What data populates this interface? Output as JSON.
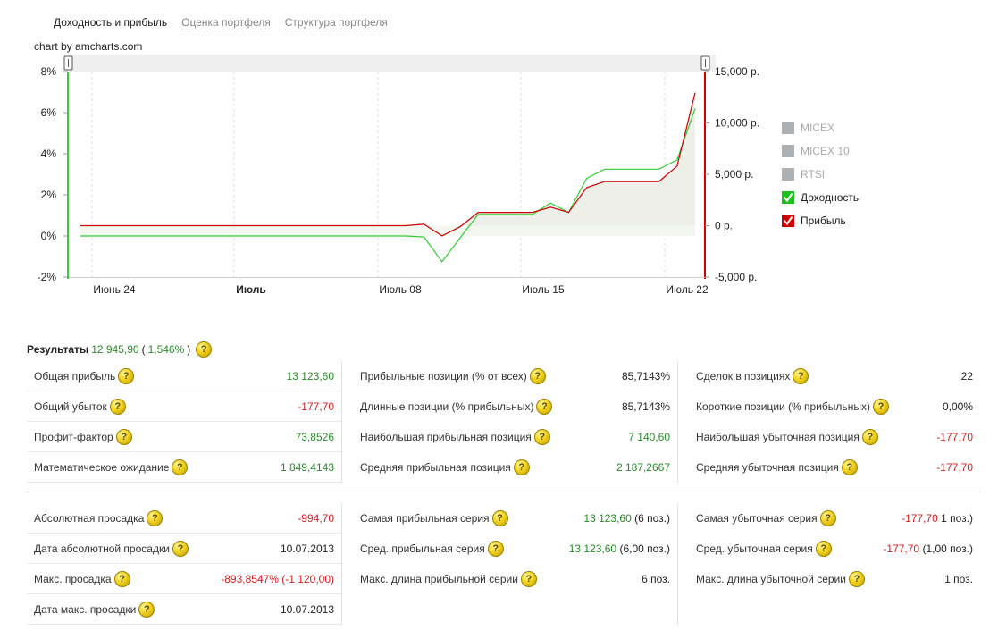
{
  "tabs": [
    {
      "label": "Доходность и прибыль",
      "active": true
    },
    {
      "label": "Оценка портфеля",
      "active": false
    },
    {
      "label": "Структура портфеля",
      "active": false
    }
  ],
  "chart": {
    "credit": "chart by amcharts.com"
  },
  "chart_data": {
    "type": "line",
    "x_ticks": [
      "Июнь 24",
      "Июль",
      "Июль 08",
      "Июль 15",
      "Июль 22"
    ],
    "left_axis": {
      "ticks": [
        "8%",
        "6%",
        "4%",
        "2%",
        "0%",
        "-2%"
      ],
      "ylim": [
        -2,
        8
      ]
    },
    "right_axis": {
      "ticks": [
        "15,000 р.",
        "10,000 р.",
        "5,000 р.",
        "0 р.",
        "-5,000 р."
      ],
      "ylim": [
        -5000,
        15000
      ]
    },
    "x": [
      "2013-06-20",
      "2013-06-21",
      "2013-06-24",
      "2013-06-25",
      "2013-06-26",
      "2013-06-27",
      "2013-06-28",
      "2013-07-01",
      "2013-07-02",
      "2013-07-03",
      "2013-07-04",
      "2013-07-05",
      "2013-07-08",
      "2013-07-09",
      "2013-07-10",
      "2013-07-11",
      "2013-07-12",
      "2013-07-15",
      "2013-07-16",
      "2013-07-17",
      "2013-07-18",
      "2013-07-19",
      "2013-07-22",
      "2013-07-23",
      "2013-07-24"
    ],
    "series": [
      {
        "name": "Доходность",
        "axis": "left",
        "color": "#33cc33",
        "values": [
          0,
          0,
          0,
          0,
          0,
          0,
          0,
          0,
          0,
          0,
          0,
          0,
          0,
          -0.05,
          -1.25,
          -0.1,
          1.05,
          1.05,
          1.6,
          1.15,
          2.8,
          3.25,
          3.25,
          3.7,
          6.2
        ]
      },
      {
        "name": "Прибыль",
        "axis": "right",
        "color": "#cc0000",
        "values": [
          0,
          0,
          0,
          0,
          0,
          0,
          0,
          0,
          0,
          0,
          0,
          0,
          0,
          150,
          -994.7,
          -100,
          1300,
          1300,
          1800,
          1300,
          3700,
          4300,
          4300,
          5800,
          12945.9
        ]
      }
    ],
    "legend": [
      {
        "label": "MICEX",
        "enabled": false,
        "color": "#aeb1b3"
      },
      {
        "label": "MICEX 10",
        "enabled": false,
        "color": "#aeb1b3"
      },
      {
        "label": "RTSI",
        "enabled": false,
        "color": "#aeb1b3"
      },
      {
        "label": "Доходность",
        "enabled": true,
        "color": "#1fbf1f"
      },
      {
        "label": "Прибыль",
        "enabled": true,
        "color": "#cc0000"
      }
    ],
    "legend_position": "right",
    "grid": true
  },
  "results": {
    "label": "Результаты",
    "total": "12 945,90",
    "open": "(",
    "percent": "1,546%",
    "close": ")"
  },
  "top_rows": [
    [
      {
        "label": "Общая прибыль",
        "value": "13 123,60",
        "color": "green"
      },
      {
        "label": "Общий убыток",
        "value": "-177,70",
        "color": "red"
      },
      {
        "label": "Профит-фактор",
        "value": "73,8526",
        "color": "green"
      },
      {
        "label": "Математическое ожидание",
        "value": "1 849,4143",
        "color": "green"
      }
    ],
    [
      {
        "label": "Прибыльные позиции (% от всех)",
        "value": "85,7143%",
        "color": "dark"
      },
      {
        "label": "Длинные позиции (% прибыльных)",
        "value": "85,7143%",
        "color": "dark"
      },
      {
        "label": "Наибольшая прибыльная позиция",
        "value": "7 140,60",
        "color": "green"
      },
      {
        "label": "Средняя прибыльная позиция",
        "value": "2 187,2667",
        "color": "green"
      }
    ],
    [
      {
        "label": "Сделок в позициях",
        "value": "22",
        "color": "dark"
      },
      {
        "label": "Короткие позиции (% прибыльных)",
        "value": "0,00%",
        "color": "dark"
      },
      {
        "label": "Наибольшая убыточная позиция",
        "value": "-177,70",
        "color": "red"
      },
      {
        "label": "Средняя убыточная позиция",
        "value": "-177,70",
        "color": "red"
      }
    ]
  ],
  "bottom_rows": [
    [
      {
        "label": "Абсолютная просадка",
        "value": "-994,70",
        "color": "red",
        "extra": ""
      },
      {
        "label": "Дата абсолютной просадки",
        "value": "10.07.2013",
        "color": "dark",
        "extra": ""
      },
      {
        "label": "Макс. просадка",
        "value": "-893,8547% (-1 120,00)",
        "color": "red",
        "extra": ""
      },
      {
        "label": "Дата макс. просадки",
        "value": "10.07.2013",
        "color": "dark",
        "extra": ""
      }
    ],
    [
      {
        "label": "Самая прибыльная серия",
        "value": "13 123,60",
        "color": "green",
        "extra": "(6 поз.)"
      },
      {
        "label": "Сред. прибыльная серия",
        "value": "13 123,60",
        "color": "green",
        "extra": "(6,00 поз.)"
      },
      {
        "label": "Макс. длина прибыльной серии",
        "value": "6 поз.",
        "color": "dark",
        "extra": ""
      }
    ],
    [
      {
        "label": "Самая убыточная серия",
        "value": "-177,70",
        "color": "red",
        "extra": "1 поз.)"
      },
      {
        "label": "Сред. убыточная серия",
        "value": "-177,70",
        "color": "red",
        "extra": "(1,00 поз.)"
      },
      {
        "label": "Макс. длина убыточной серии",
        "value": "1 поз.",
        "color": "dark",
        "extra": ""
      }
    ]
  ],
  "help_icon": "question-mark-icon"
}
